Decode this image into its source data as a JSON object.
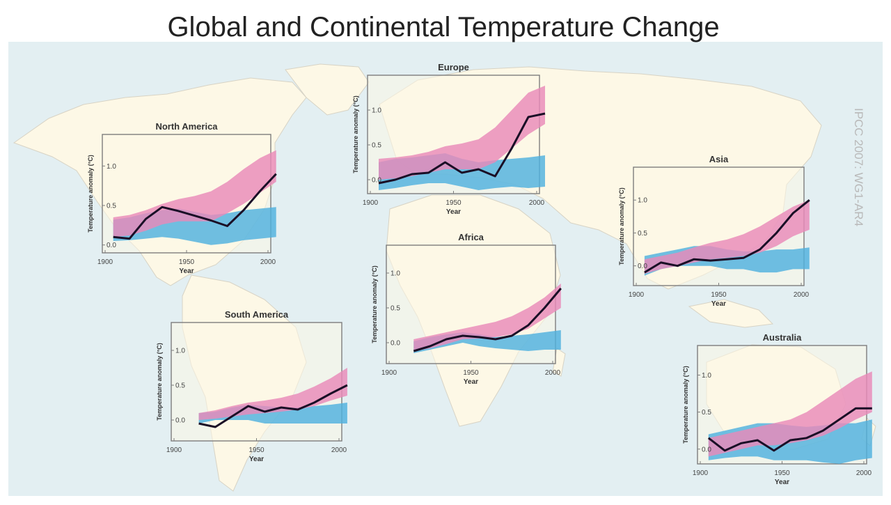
{
  "title": "Global and Continental Temperature Change",
  "credit": "IPCC 2007: WG1-AR4",
  "colors": {
    "ocean": "#e3eff2",
    "land": "#fdf8e6",
    "pink": "#e98ab8",
    "purple": "#9a72c8",
    "blue": "#4fb1de",
    "line": "#1a0f26",
    "frame": "#7d7d7d"
  },
  "chart_data": [
    {
      "type": "line",
      "title": "North America",
      "xlabel": "Year",
      "ylabel": "Temperature anomaly (°C)",
      "xlim": [
        1900,
        2000
      ],
      "ylim": [
        -0.1,
        1.4
      ],
      "xticks": [
        1900,
        1950,
        2000
      ],
      "yticks": [
        0.0,
        0.5,
        1.0
      ],
      "ytick_labels": [
        "0.0",
        "0.5",
        "1.0"
      ],
      "x": [
        1905,
        1915,
        1925,
        1935,
        1945,
        1955,
        1965,
        1975,
        1985,
        1995,
        2005
      ],
      "observed": [
        0.1,
        0.08,
        0.33,
        0.48,
        0.43,
        0.37,
        0.31,
        0.24,
        0.44,
        0.68,
        0.9
      ],
      "natural_low": [
        0.05,
        0.06,
        0.08,
        0.1,
        0.08,
        0.04,
        0.0,
        0.02,
        0.06,
        0.08,
        0.1
      ],
      "natural_high": [
        0.32,
        0.35,
        0.4,
        0.44,
        0.46,
        0.42,
        0.38,
        0.4,
        0.44,
        0.46,
        0.48
      ],
      "combined_low": [
        0.1,
        0.12,
        0.18,
        0.26,
        0.3,
        0.3,
        0.3,
        0.4,
        0.52,
        0.66,
        0.8
      ],
      "combined_high": [
        0.35,
        0.38,
        0.44,
        0.52,
        0.58,
        0.62,
        0.68,
        0.8,
        0.96,
        1.1,
        1.2
      ]
    },
    {
      "type": "line",
      "title": "Europe",
      "xlabel": "Year",
      "ylabel": "Temperature anomaly (°C)",
      "xlim": [
        1900,
        2000
      ],
      "ylim": [
        -0.2,
        1.5
      ],
      "xticks": [
        1900,
        1950,
        2000
      ],
      "yticks": [
        0.0,
        0.5,
        1.0
      ],
      "ytick_labels": [
        "0.0",
        "0.5",
        "1.0"
      ],
      "x": [
        1905,
        1915,
        1925,
        1935,
        1945,
        1955,
        1965,
        1975,
        1985,
        1995,
        2005
      ],
      "observed": [
        -0.05,
        0.0,
        0.08,
        0.1,
        0.25,
        0.1,
        0.15,
        0.05,
        0.45,
        0.9,
        0.95
      ],
      "natural_low": [
        -0.15,
        -0.12,
        -0.08,
        -0.05,
        -0.05,
        -0.1,
        -0.15,
        -0.12,
        -0.1,
        -0.12,
        -0.1
      ],
      "natural_high": [
        0.25,
        0.3,
        0.32,
        0.35,
        0.38,
        0.3,
        0.25,
        0.28,
        0.3,
        0.32,
        0.35
      ],
      "combined_low": [
        0.0,
        0.02,
        0.05,
        0.1,
        0.15,
        0.15,
        0.15,
        0.25,
        0.45,
        0.65,
        0.8
      ],
      "combined_high": [
        0.3,
        0.32,
        0.35,
        0.4,
        0.48,
        0.52,
        0.58,
        0.75,
        1.0,
        1.25,
        1.35
      ]
    },
    {
      "type": "line",
      "title": "Asia",
      "xlabel": "Year",
      "ylabel": "Temperature anomaly (°C)",
      "xlim": [
        1900,
        2000
      ],
      "ylim": [
        -0.3,
        1.5
      ],
      "xticks": [
        1900,
        1950,
        2000
      ],
      "yticks": [
        0.0,
        0.5,
        1.0
      ],
      "ytick_labels": [
        "0.0",
        "0.5",
        "1.0"
      ],
      "x": [
        1905,
        1915,
        1925,
        1935,
        1945,
        1955,
        1965,
        1975,
        1985,
        1995,
        2005
      ],
      "observed": [
        -0.1,
        0.05,
        0.0,
        0.1,
        0.08,
        0.1,
        0.12,
        0.25,
        0.5,
        0.8,
        1.0
      ],
      "natural_low": [
        -0.15,
        -0.05,
        0.0,
        0.0,
        0.0,
        -0.05,
        -0.05,
        -0.1,
        -0.1,
        -0.05,
        -0.05
      ],
      "natural_high": [
        0.15,
        0.2,
        0.25,
        0.3,
        0.3,
        0.25,
        0.22,
        0.22,
        0.25,
        0.25,
        0.28
      ],
      "combined_low": [
        -0.12,
        -0.05,
        0.0,
        0.05,
        0.1,
        0.12,
        0.15,
        0.2,
        0.3,
        0.45,
        0.55
      ],
      "combined_high": [
        0.1,
        0.15,
        0.2,
        0.28,
        0.35,
        0.4,
        0.48,
        0.6,
        0.75,
        0.9,
        1.0
      ]
    },
    {
      "type": "line",
      "title": "Africa",
      "xlabel": "Year",
      "ylabel": "Temperature anomaly (°C)",
      "xlim": [
        1900,
        2000
      ],
      "ylim": [
        -0.3,
        1.4
      ],
      "xticks": [
        1900,
        1950,
        2000
      ],
      "yticks": [
        0.0,
        0.5,
        1.0
      ],
      "ytick_labels": [
        "0.0",
        "0.5",
        "1.0"
      ],
      "x": [
        1915,
        1925,
        1935,
        1945,
        1955,
        1965,
        1975,
        1985,
        1995,
        2005
      ],
      "observed": [
        -0.12,
        -0.05,
        0.05,
        0.1,
        0.08,
        0.05,
        0.1,
        0.25,
        0.5,
        0.78
      ],
      "natural_low": [
        -0.15,
        -0.1,
        -0.05,
        0.0,
        -0.05,
        -0.08,
        -0.1,
        -0.12,
        -0.1,
        -0.1
      ],
      "natural_high": [
        0.02,
        0.08,
        0.12,
        0.15,
        0.12,
        0.08,
        0.1,
        0.12,
        0.15,
        0.18
      ],
      "combined_low": [
        -0.12,
        -0.08,
        -0.02,
        0.05,
        0.06,
        0.08,
        0.12,
        0.2,
        0.35,
        0.5
      ],
      "combined_high": [
        0.05,
        0.1,
        0.15,
        0.2,
        0.25,
        0.3,
        0.38,
        0.5,
        0.65,
        0.85
      ]
    },
    {
      "type": "line",
      "title": "South America",
      "xlabel": "Year",
      "ylabel": "Temperature anomaly (°C)",
      "xlim": [
        1900,
        2000
      ],
      "ylim": [
        -0.3,
        1.4
      ],
      "xticks": [
        1900,
        1950,
        2000
      ],
      "yticks": [
        0.0,
        0.5,
        1.0
      ],
      "ytick_labels": [
        "0.0",
        "0.5",
        "1.0"
      ],
      "x": [
        1915,
        1925,
        1935,
        1945,
        1955,
        1965,
        1975,
        1985,
        1995,
        2005
      ],
      "observed": [
        -0.05,
        -0.1,
        0.05,
        0.2,
        0.12,
        0.18,
        0.15,
        0.25,
        0.38,
        0.5
      ],
      "natural_low": [
        -0.05,
        0.0,
        0.0,
        0.0,
        -0.05,
        -0.05,
        -0.05,
        -0.05,
        -0.05,
        -0.05
      ],
      "natural_high": [
        0.1,
        0.12,
        0.18,
        0.22,
        0.2,
        0.18,
        0.18,
        0.2,
        0.22,
        0.25
      ],
      "combined_low": [
        0.0,
        0.02,
        0.05,
        0.08,
        0.1,
        0.12,
        0.15,
        0.2,
        0.28,
        0.35
      ],
      "combined_high": [
        0.1,
        0.14,
        0.2,
        0.25,
        0.28,
        0.32,
        0.38,
        0.48,
        0.6,
        0.75
      ]
    },
    {
      "type": "line",
      "title": "Australia",
      "xlabel": "Year",
      "ylabel": "Temperature anomaly (°C)",
      "xlim": [
        1900,
        2000
      ],
      "ylim": [
        -0.2,
        1.4
      ],
      "xticks": [
        1900,
        1950,
        2000
      ],
      "yticks": [
        0.0,
        0.5,
        1.0
      ],
      "ytick_labels": [
        "0.0",
        "0.5",
        "1.0"
      ],
      "x": [
        1905,
        1915,
        1925,
        1935,
        1945,
        1955,
        1965,
        1975,
        1985,
        1995,
        2005
      ],
      "observed": [
        0.15,
        -0.02,
        0.08,
        0.12,
        -0.02,
        0.12,
        0.15,
        0.25,
        0.4,
        0.55,
        0.55
      ],
      "natural_low": [
        -0.15,
        -0.12,
        -0.1,
        -0.1,
        -0.15,
        -0.15,
        -0.15,
        -0.18,
        -0.2,
        -0.15,
        -0.12
      ],
      "natural_high": [
        0.2,
        0.25,
        0.3,
        0.35,
        0.35,
        0.32,
        0.3,
        0.32,
        0.35,
        0.35,
        0.4
      ],
      "combined_low": [
        -0.1,
        -0.05,
        0.0,
        0.05,
        0.05,
        0.08,
        0.12,
        0.18,
        0.28,
        0.4,
        0.5
      ],
      "combined_high": [
        0.15,
        0.2,
        0.25,
        0.3,
        0.35,
        0.4,
        0.5,
        0.65,
        0.8,
        0.95,
        1.05
      ]
    }
  ]
}
